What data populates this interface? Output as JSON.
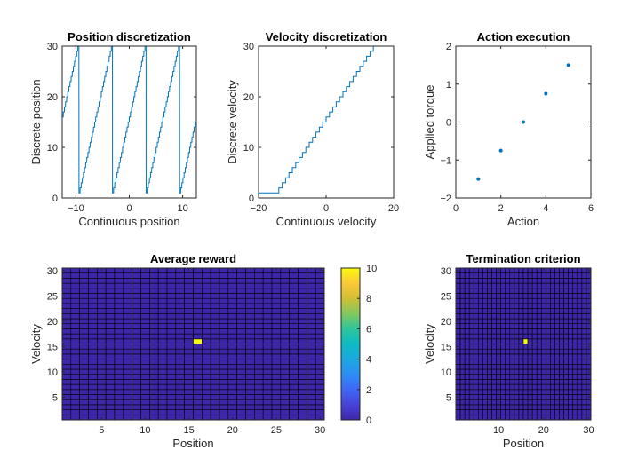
{
  "colors": {
    "line": "#0072bd",
    "cell_low": "#3e26a8",
    "cell_high": "#f9fb0e",
    "grid": "#000000",
    "axis": "#262626"
  },
  "colormap": "parula",
  "chart_data": [
    {
      "type": "line",
      "title": "Position discretization",
      "xlabel": "Continuous position",
      "ylabel": "Discrete position",
      "xlim": [
        -12.566,
        12.566
      ],
      "ylim": [
        0,
        30
      ],
      "xticks": [
        -10,
        0,
        10
      ],
      "yticks": [
        0,
        10,
        20,
        30
      ],
      "period": 6.2832,
      "levels": 30,
      "series": [
        {
          "function": "sawtooth",
          "min": 1,
          "max": 30
        }
      ]
    },
    {
      "type": "line",
      "title": "Velocity discretization",
      "xlabel": "Continuous velocity",
      "ylabel": "Discrete velocity",
      "xlim": [
        -20,
        20
      ],
      "ylim": [
        0,
        30
      ],
      "xticks": [
        -20,
        0,
        20
      ],
      "yticks": [
        0,
        10,
        20,
        30
      ],
      "series": [
        {
          "function": "staircase",
          "min": 1,
          "max": 30,
          "input_range": [
            -15,
            15
          ]
        }
      ]
    },
    {
      "type": "scatter",
      "title": "Action execution",
      "xlabel": "Action",
      "ylabel": "Applied torque",
      "xlim": [
        0,
        6
      ],
      "ylim": [
        -2,
        2
      ],
      "xticks": [
        0,
        2,
        4,
        6
      ],
      "yticks": [
        -2,
        -1,
        0,
        1,
        2
      ],
      "x": [
        1,
        2,
        3,
        4,
        5
      ],
      "y": [
        -1.5,
        -0.75,
        0,
        0.75,
        1.5
      ]
    },
    {
      "type": "heatmap",
      "title": "Average reward",
      "xlabel": "Position",
      "ylabel": "Velocity",
      "xlim": [
        0.5,
        30.5
      ],
      "ylim": [
        0.5,
        30.5
      ],
      "xticks": [
        5,
        10,
        15,
        20,
        25,
        30
      ],
      "yticks": [
        5,
        10,
        15,
        20,
        25,
        30
      ],
      "rows": 30,
      "cols": 30,
      "baseline": 0,
      "highlight": [
        {
          "position": 16,
          "velocity": 16,
          "value": 10
        }
      ],
      "colorbar": {
        "min": 0,
        "max": 10,
        "ticks": [
          0,
          2,
          4,
          6,
          8,
          10
        ]
      }
    },
    {
      "type": "heatmap",
      "title": "Termination criterion",
      "xlabel": "Position",
      "ylabel": "Velocity",
      "xlim": [
        0.5,
        30.5
      ],
      "ylim": [
        0.5,
        30.5
      ],
      "xticks": [
        10,
        20,
        30
      ],
      "yticks": [
        5,
        10,
        15,
        20,
        25,
        30
      ],
      "rows": 30,
      "cols": 30,
      "baseline": 0,
      "highlight": [
        {
          "position": 16,
          "velocity": 16,
          "value": 1
        }
      ]
    }
  ]
}
